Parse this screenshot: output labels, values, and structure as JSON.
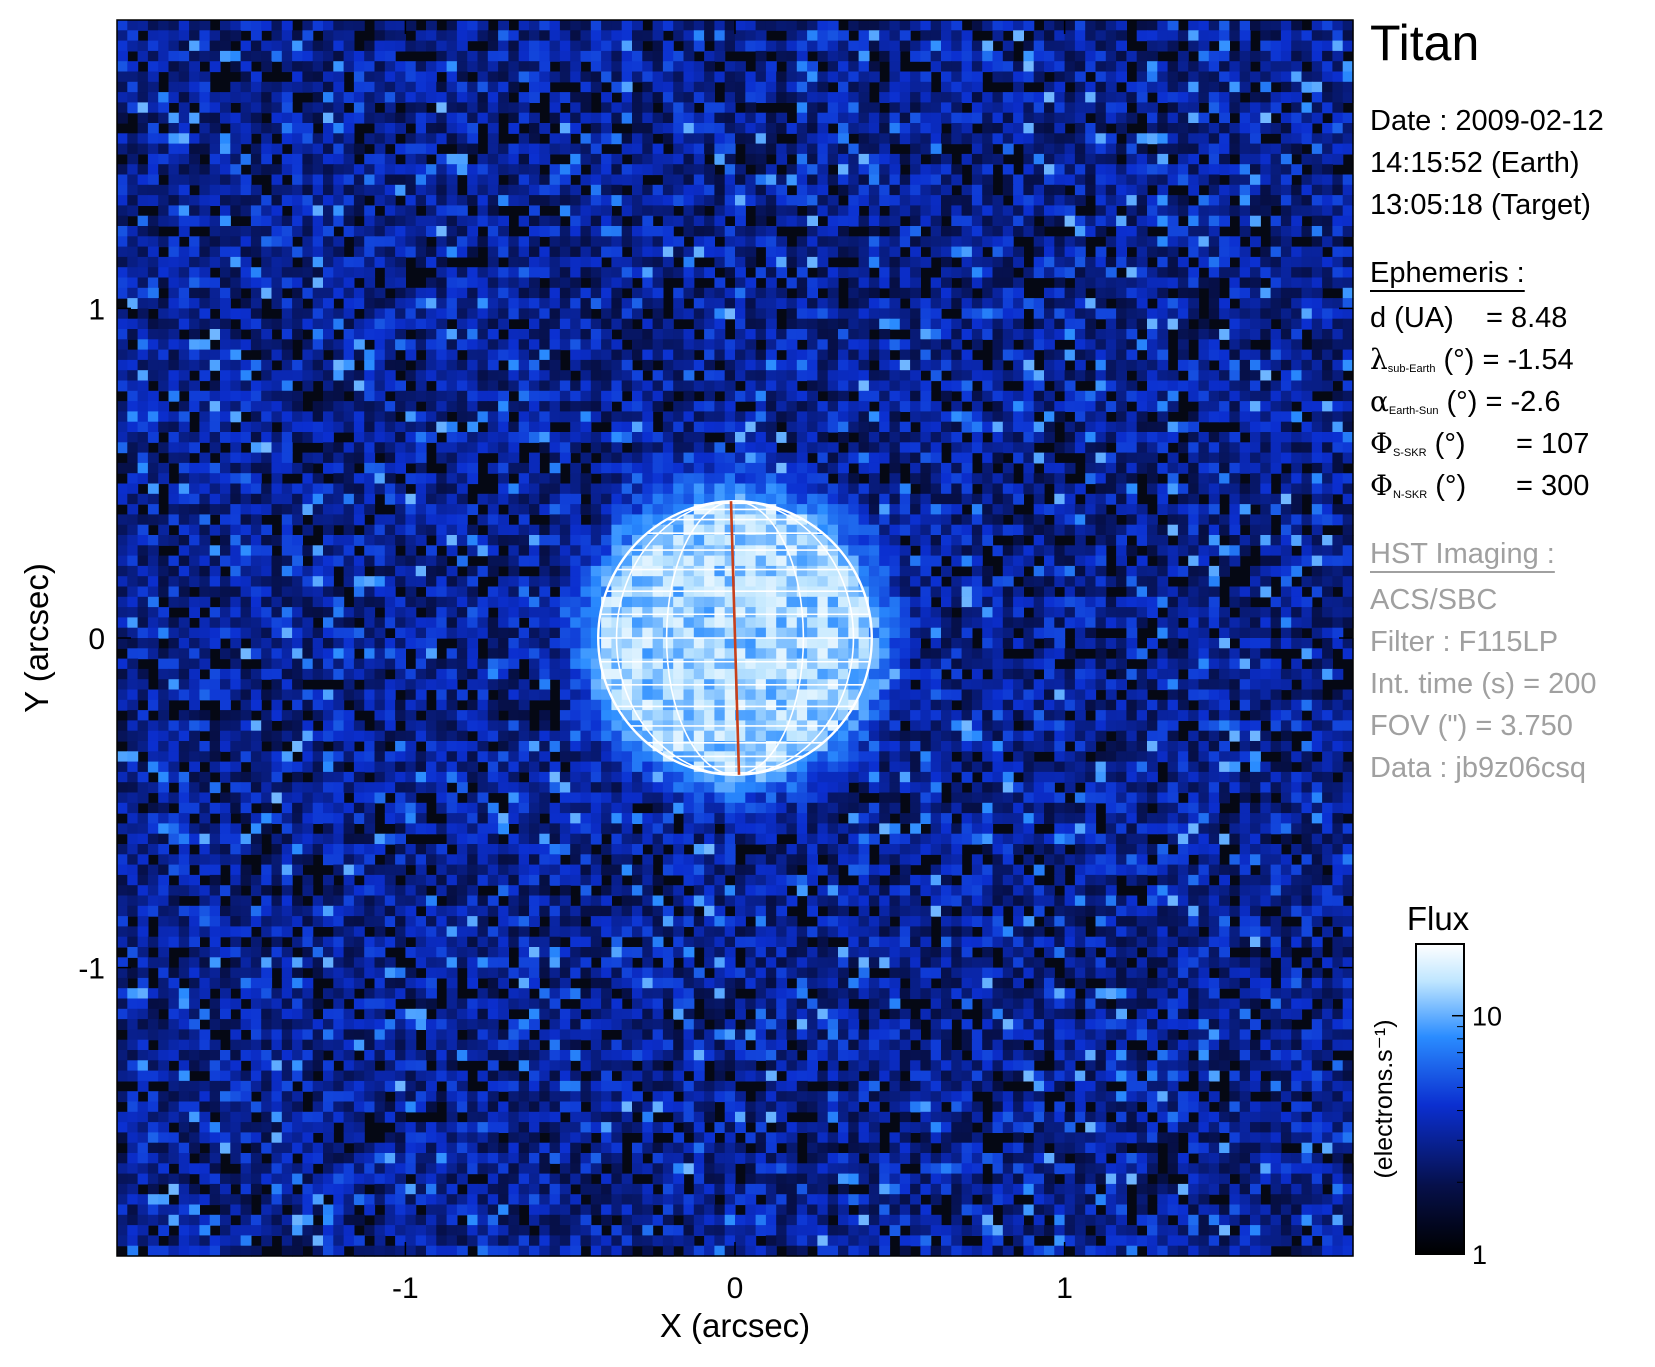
{
  "chart_data": {
    "type": "heatmap",
    "title": "Titan",
    "xlabel": "X (arcsec)",
    "ylabel": "Y (arcsec)",
    "xlim": [
      -1.875,
      1.875
    ],
    "ylim": [
      -1.875,
      1.875
    ],
    "x_ticks": [
      -1,
      0,
      1
    ],
    "y_ticks": [
      -1,
      0,
      1
    ],
    "x_tick_labels": [
      "-1",
      "0",
      "1"
    ],
    "y_tick_labels": [
      "-1",
      "0",
      "1"
    ],
    "grid": false,
    "colormap": [
      "#000000",
      "#06104a",
      "#0b2fd0",
      "#2a8cff",
      "#bfe6ff",
      "#ffffff"
    ],
    "planet_grid": {
      "center_x": 0.0,
      "center_y": 0.0,
      "radius_arcsec": 0.415,
      "color": "#ffffff",
      "central_meridian_color": "#c8401c"
    },
    "colorbar": {
      "title": "Flux",
      "label": "(electrons.s⁻¹)",
      "scale": "log",
      "range": [
        1,
        20
      ],
      "ticks": [
        1,
        10
      ],
      "tick_labels": [
        "1",
        "10"
      ]
    }
  },
  "info": {
    "date_line": "Date : 2009-02-12",
    "earth_time": "14:15:52 (Earth)",
    "target_time": "13:05:18 (Target)",
    "ephemeris_header": "Ephemeris :",
    "d_label": "d (UA)",
    "d_value": "= 8.48",
    "lambda_symbol": "λ",
    "lambda_sub": "sub-Earth",
    "lambda_rest": "(°) = -1.54",
    "alpha_symbol": "α",
    "alpha_sub": "Earth-Sun",
    "alpha_rest": "(°) = -2.6",
    "phi_symbol": "Φ",
    "phi_s_sub": "S-SKR",
    "phi_s_rest": "(°)",
    "phi_s_value": "= 107",
    "phi_n_symbol": "Φ",
    "phi_n_sub": "N-SKR",
    "phi_n_rest": "(°)",
    "phi_n_value": "= 300",
    "hst_header": "HST Imaging :",
    "instrument": "ACS/SBC",
    "filter": "Filter : F115LP",
    "int_time": "Int. time (s) = 200",
    "fov": "FOV (\") = 3.750",
    "data_id": "Data : jb9z06csq"
  }
}
